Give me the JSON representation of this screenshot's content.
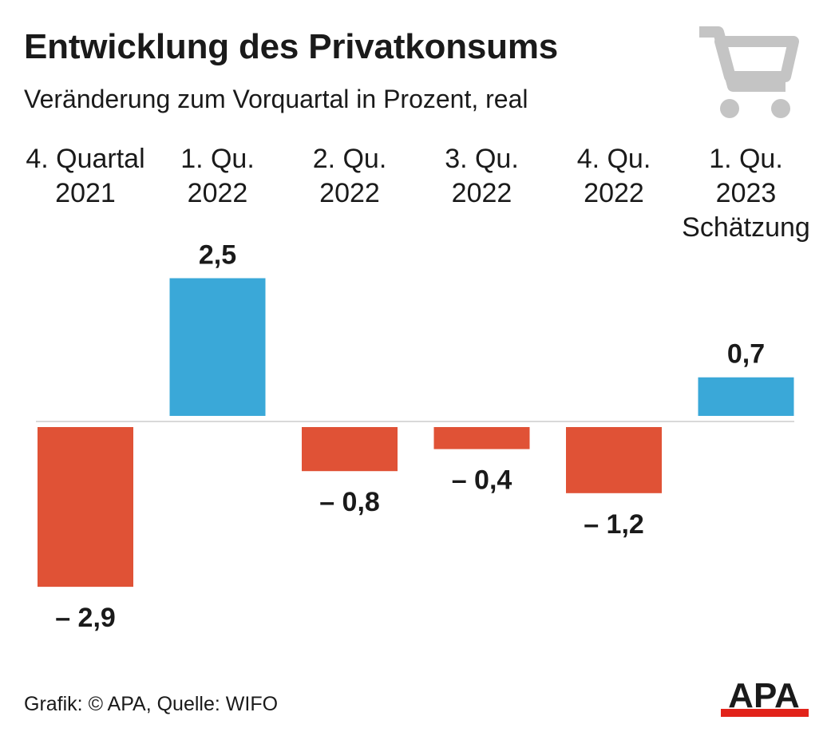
{
  "title": "Entwicklung des Privatkonsums",
  "subtitle": "Veränderung zum Vorquartal in Prozent, real",
  "footer": "Grafik: © APA, Quelle: WIFO",
  "logo_text": "APA",
  "icon": "shopping-cart-icon",
  "colors": {
    "positive": "#3aa8d8",
    "negative": "#e05236",
    "text": "#1a1a1a",
    "icon": "#c4c4c4",
    "logo_red": "#e2231a"
  },
  "chart_data": {
    "type": "bar",
    "categories": [
      [
        "4. Quartal",
        "2021"
      ],
      [
        "1. Qu.",
        "2022"
      ],
      [
        "2. Qu.",
        "2022"
      ],
      [
        "3. Qu.",
        "2022"
      ],
      [
        "4. Qu.",
        "2022"
      ],
      [
        "1. Qu.",
        "2023",
        "Schätzung"
      ]
    ],
    "values": [
      -2.9,
      2.5,
      -0.8,
      -0.4,
      -1.2,
      0.7
    ],
    "value_labels": [
      "– 2,9",
      "2,5",
      "– 0,8",
      "– 0,4",
      "– 1,2",
      "0,7"
    ],
    "ylim": [
      -2.9,
      2.5
    ]
  }
}
